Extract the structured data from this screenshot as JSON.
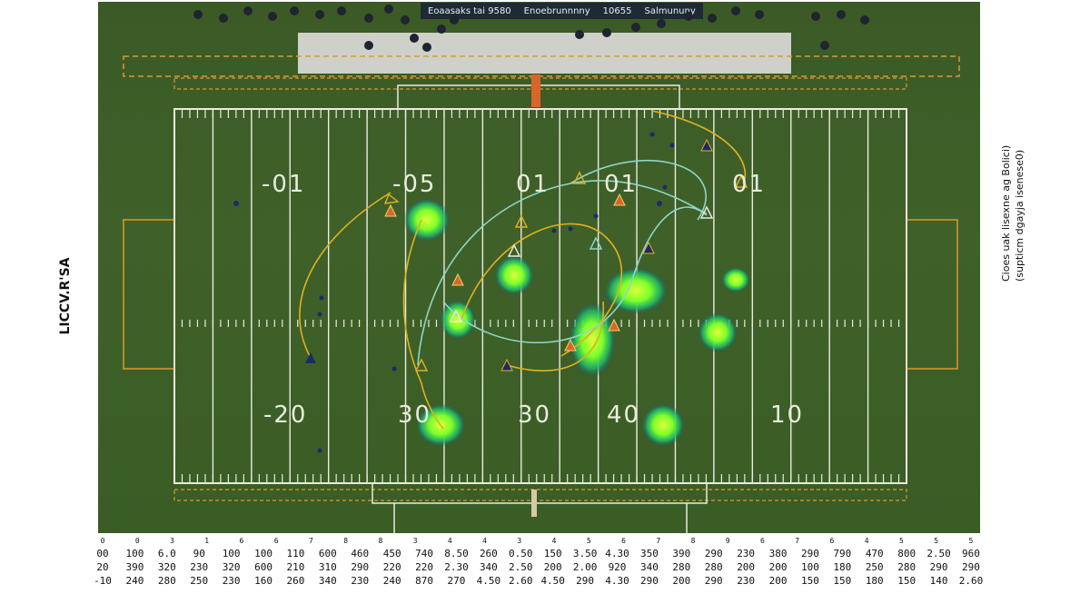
{
  "scoreboard": [
    "Eoaasaks tai 9580",
    "Enoebrunnnny",
    "10655",
    "Salmununy"
  ],
  "yard_numbers": [
    "-01",
    "-05",
    "01",
    "01",
    "01",
    "-20",
    "30",
    "30",
    "40",
    "10"
  ],
  "y_axis_label": "LICCV.R'SA",
  "caption_lines": [
    "Cioes uak lisexne ag Bolici)",
    "(supticm dgayja isenese0)"
  ],
  "table": {
    "header": [
      "0",
      "0",
      "3",
      "1",
      "6",
      "6",
      "7",
      "8",
      "8",
      "3",
      "4",
      "4",
      "3",
      "4",
      "5",
      "6",
      "7",
      "8",
      "9",
      "6",
      "7",
      "6",
      "4",
      "5",
      "5",
      "5"
    ],
    "rows": [
      [
        "00",
        "100",
        "6.0",
        "90",
        "100",
        "100",
        "110",
        "600",
        "460",
        "450",
        "740",
        "8.50",
        "260",
        "0.50",
        "150",
        "3.50",
        "4.30",
        "350",
        "390",
        "290",
        "230",
        "380",
        "290",
        "790",
        "470",
        "800",
        "2.50",
        "960"
      ],
      [
        "20",
        "390",
        "320",
        "230",
        "320",
        "600",
        "210",
        "310",
        "290",
        "220",
        "220",
        "2.30",
        "340",
        "2.50",
        "200",
        "2.00",
        "920",
        "340",
        "280",
        "280",
        "200",
        "200",
        "100",
        "180",
        "250",
        "280",
        "290",
        "290"
      ],
      [
        "-10",
        "240",
        "280",
        "250",
        "230",
        "160",
        "260",
        "340",
        "230",
        "240",
        "870",
        "270",
        "4.50",
        "2.60",
        "4.50",
        "290",
        "4.30",
        "290",
        "200",
        "290",
        "230",
        "200",
        "150",
        "150",
        "180",
        "150",
        "140",
        "2.60"
      ]
    ]
  },
  "colors": {
    "field": "#3d5f28",
    "lines": "#e9ecdf",
    "heat": "#7cff2a",
    "route_yellow": "#e0b020",
    "route_cyan": "#8fd6c7",
    "marker_orange": "#d8662a",
    "marker_navy": "#1c2a6b"
  }
}
